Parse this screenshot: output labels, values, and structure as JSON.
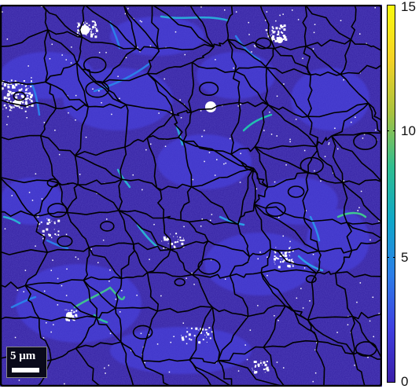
{
  "scalebar": {
    "label": "5 μm"
  },
  "colorbar": {
    "min": 0,
    "max": 15,
    "ticks": [
      "0",
      "5",
      "10",
      "15"
    ],
    "colormap": "parula",
    "colors": [
      "#3a1ea8",
      "#3f3fe0",
      "#2c7ee8",
      "#0fa7c8",
      "#2fbe90",
      "#a8c23e",
      "#f4d225",
      "#f9f90e"
    ]
  },
  "map": {
    "background_color": "#3220a0",
    "grain_boundary_color": "#000000"
  }
}
